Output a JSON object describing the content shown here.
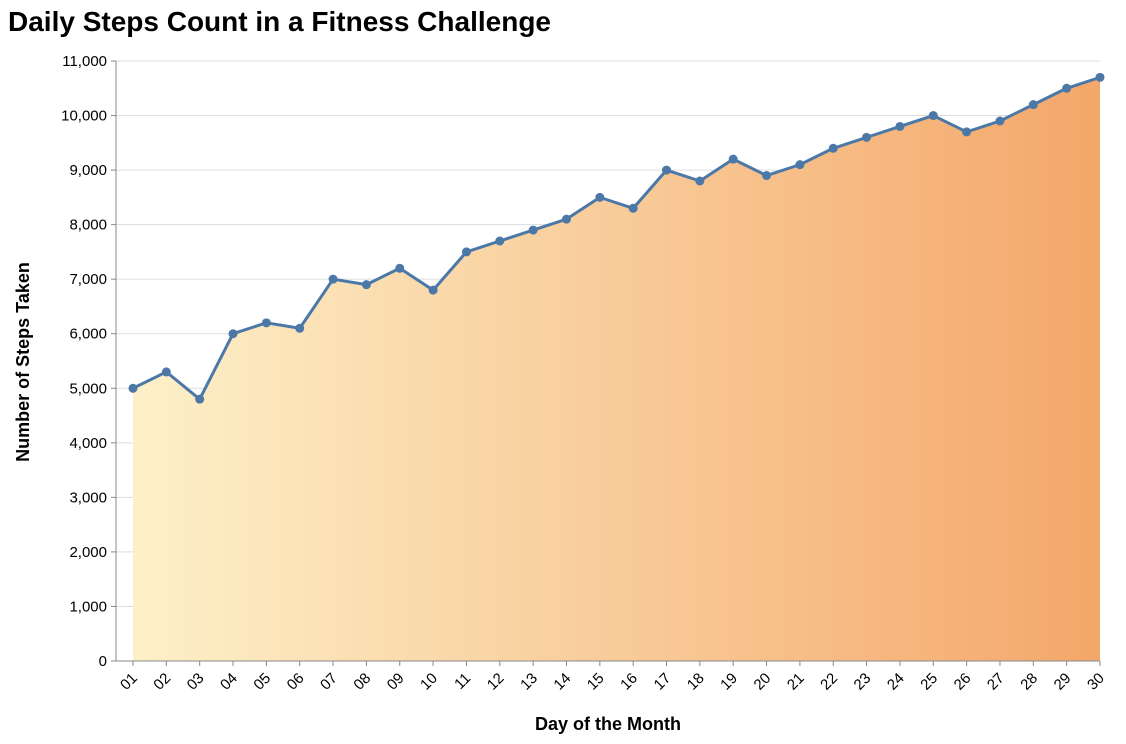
{
  "chart_data": {
    "type": "area",
    "title": "Daily Steps Count in a Fitness Challenge",
    "xlabel": "Day of the Month",
    "ylabel": "Number of Steps Taken",
    "categories": [
      "01",
      "02",
      "03",
      "04",
      "05",
      "06",
      "07",
      "08",
      "09",
      "10",
      "11",
      "12",
      "13",
      "14",
      "15",
      "16",
      "17",
      "18",
      "19",
      "20",
      "21",
      "22",
      "23",
      "24",
      "25",
      "26",
      "27",
      "28",
      "29",
      "30"
    ],
    "values": [
      5000,
      5300,
      4800,
      6000,
      6200,
      6100,
      7000,
      6900,
      7200,
      6800,
      7500,
      7700,
      7900,
      8100,
      8500,
      8300,
      9000,
      8800,
      9200,
      8900,
      9100,
      9400,
      9600,
      9800,
      10000,
      9700,
      9900,
      10200,
      10500,
      10700
    ],
    "ylim": [
      0,
      11000
    ],
    "yticks": [
      0,
      1000,
      2000,
      3000,
      4000,
      5000,
      6000,
      7000,
      8000,
      9000,
      10000,
      11000
    ],
    "ytick_labels": [
      "0",
      "1,000",
      "2,000",
      "3,000",
      "4,000",
      "5,000",
      "6,000",
      "7,000",
      "8,000",
      "9,000",
      "10,000",
      "11,000"
    ],
    "grid": true,
    "legend": "none",
    "colors": {
      "line": "#4c78a8",
      "area_gradient_start": "#fdf0c8",
      "area_gradient_end": "#f4a76a",
      "grid": "#dddddd",
      "axis": "#888888"
    }
  }
}
